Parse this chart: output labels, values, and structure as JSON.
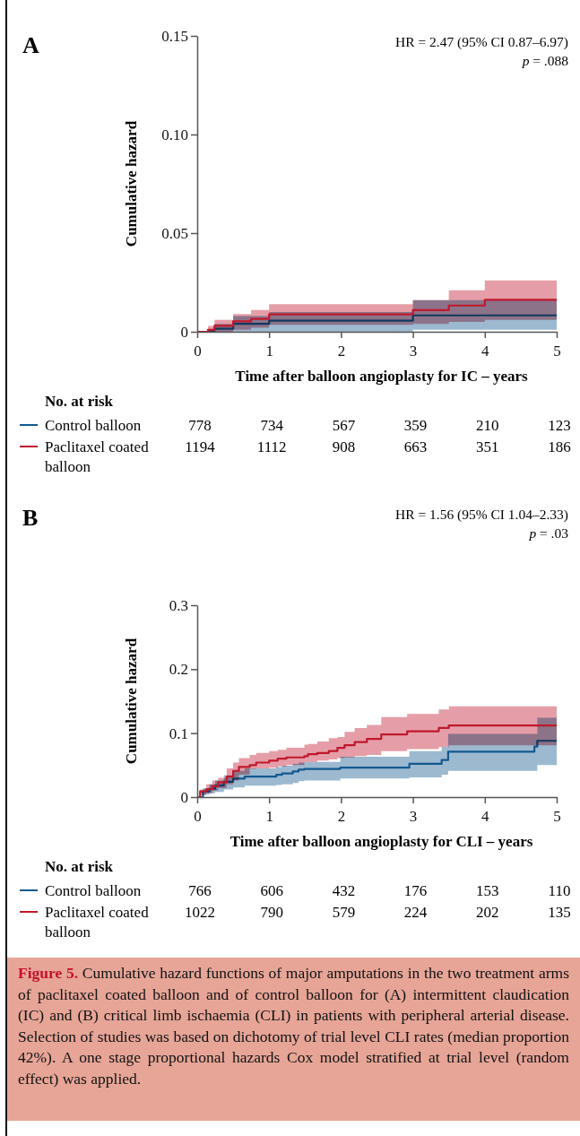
{
  "chart_data": [
    {
      "type": "step",
      "title": "A",
      "xlabel": "Time after balloon angioplasty for IC – years",
      "ylabel": "Cumulative hazard",
      "xlim": [
        0,
        5
      ],
      "xticks": [
        0,
        1,
        2,
        3,
        4,
        5
      ],
      "ylim": [
        0,
        0.15
      ],
      "yticks": [
        0,
        0.05,
        {
          "value": 0.1,
          "label": "0.10"
        },
        0.15
      ],
      "legend": "bottom",
      "series": [
        {
          "name": "Control balloon",
          "color": "#13598f",
          "x": [
            0,
            0.24,
            0.5,
            1,
            3,
            5
          ],
          "values": [
            0,
            0.0015,
            0.004,
            0.0056,
            0.0083,
            0.0083
          ],
          "upper": [
            0,
            0.004,
            0.008,
            0.01,
            0.016,
            0.016
          ],
          "lower": [
            0,
            0,
            0,
            0,
            0.001,
            0.001
          ]
        },
        {
          "name": "Paclitaxel coated balloon",
          "color": "#c0182e",
          "x": [
            0,
            0.15,
            0.24,
            0.5,
            0.75,
            1,
            3,
            3.5,
            4,
            5
          ],
          "values": [
            0,
            0.001,
            0.003,
            0.0053,
            0.0065,
            0.0088,
            0.011,
            0.0133,
            0.0162,
            0.0162
          ],
          "upper": [
            0,
            0.003,
            0.006,
            0.009,
            0.011,
            0.014,
            0.016,
            0.021,
            0.026,
            0.026
          ],
          "lower": [
            0,
            0,
            0,
            0.001,
            0.002,
            0.0035,
            0.004,
            0.005,
            0.006,
            0.006
          ]
        }
      ],
      "annotations": [
        "HR = 2.47 (95% CI 0.87–6.97)",
        "p = .088",
        "No. at risk",
        "778 734 567 359 210 123",
        "1194 1112 908 663 351 186"
      ]
    },
    {
      "type": "step",
      "title": "B",
      "xlabel": "Time after balloon angioplasty for CLI – years",
      "ylabel": "Cumulative hazard",
      "xlim": [
        0,
        5
      ],
      "xticks": [
        0,
        1,
        2,
        3,
        4,
        5
      ],
      "ylim": [
        0,
        0.3
      ],
      "yticks": [
        0,
        0.1,
        0.2,
        0.3
      ],
      "legend": "bottom",
      "series": [
        {
          "name": "Control balloon",
          "color": "#13598f",
          "x": [
            0,
            0.08,
            0.17,
            0.25,
            0.37,
            0.5,
            0.66,
            1.1,
            1.18,
            1.33,
            1.41,
            1.49,
            1.99,
            2.95,
            3.4,
            3.49,
            4.69,
            4.73,
            5
          ],
          "values": [
            0,
            0.009,
            0.013,
            0.018,
            0.024,
            0.029,
            0.032,
            0.035,
            0.037,
            0.04,
            0.043,
            0.044,
            0.046,
            0.052,
            0.058,
            0.071,
            0.079,
            0.088,
            0.088
          ],
          "upper": [
            0,
            0.014,
            0.02,
            0.026,
            0.034,
            0.041,
            0.045,
            0.047,
            0.049,
            0.052,
            0.054,
            0.055,
            0.063,
            0.072,
            0.078,
            0.099,
            0.099,
            0.124,
            0.124
          ],
          "lower": [
            0,
            0.004,
            0.006,
            0.008,
            0.012,
            0.015,
            0.018,
            0.019,
            0.02,
            0.022,
            0.025,
            0.026,
            0.029,
            0.031,
            0.035,
            0.041,
            0.041,
            0.05,
            0.05
          ]
        },
        {
          "name": "Paclitaxel coated balloon",
          "color": "#c0182e",
          "x": [
            0,
            0.04,
            0.125,
            0.21,
            0.29,
            0.41,
            0.5,
            0.58,
            0.73,
            0.82,
            1.0,
            1.12,
            1.24,
            1.49,
            1.54,
            1.67,
            1.83,
            1.95,
            2.05,
            2.19,
            2.36,
            2.56,
            2.92,
            3.36,
            3.5,
            5
          ],
          "values": [
            0,
            0.009,
            0.012,
            0.017,
            0.023,
            0.032,
            0.041,
            0.047,
            0.05,
            0.054,
            0.057,
            0.06,
            0.062,
            0.064,
            0.067,
            0.069,
            0.072,
            0.077,
            0.081,
            0.086,
            0.091,
            0.098,
            0.103,
            0.108,
            0.112,
            0.112
          ],
          "upper": [
            0,
            0.012,
            0.02,
            0.026,
            0.03,
            0.045,
            0.054,
            0.061,
            0.066,
            0.069,
            0.072,
            0.074,
            0.077,
            0.082,
            0.083,
            0.087,
            0.092,
            0.094,
            0.102,
            0.108,
            0.113,
            0.125,
            0.13,
            0.137,
            0.142,
            0.142
          ],
          "lower": [
            0,
            0.003,
            0.006,
            0.01,
            0.014,
            0.02,
            0.026,
            0.035,
            0.044,
            0.045,
            0.046,
            0.048,
            0.05,
            0.055,
            0.055,
            0.057,
            0.059,
            0.061,
            0.062,
            0.064,
            0.066,
            0.072,
            0.075,
            0.078,
            0.081,
            0.081
          ]
        }
      ],
      "annotations": [
        "HR = 1.56 (95% CI 1.04–2.33)",
        "p = .03",
        "No. at risk",
        "766 606 432 176 153 110",
        "1022 790 579 224 202 135",
        "Figure 5.",
        "Cumulative hazard functions of major amputations in the two treatment arms of paclitaxel coated balloon and of control balloon for (A) intermittent claudication (IC) and (B) critical limb ischaemia (CLI) in patients with peripheral arterial disease. Selection of studies was based on dichotomy of trial level CLI rates (median proportion 42%). A one stage proportional hazards Cox model stratified at trial level (random effect) was applied."
      ]
    }
  ]
}
